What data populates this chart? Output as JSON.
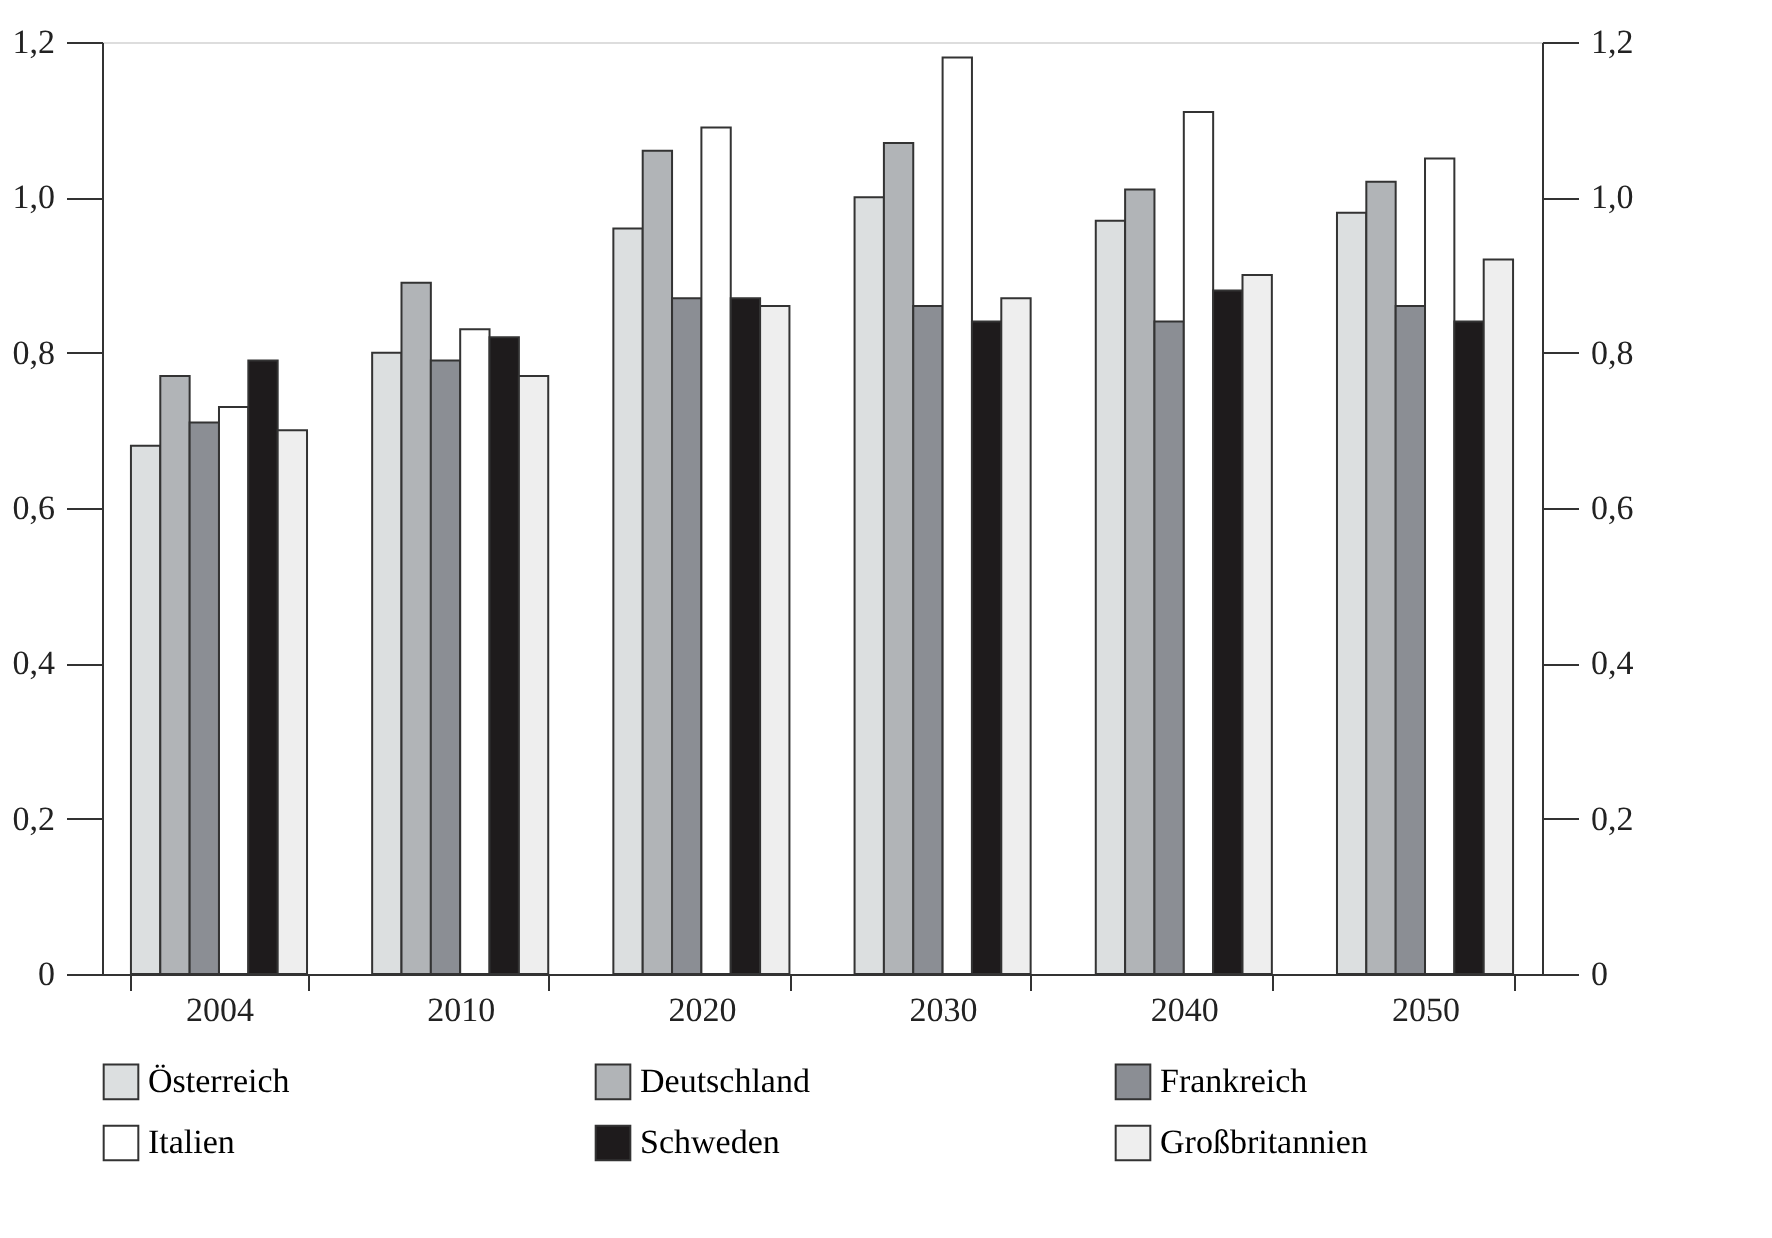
{
  "chart_data": {
    "type": "bar",
    "categories": [
      "2004",
      "2010",
      "2020",
      "2030",
      "2040",
      "2050"
    ],
    "series": [
      {
        "name": "Österreich",
        "color": "#dcdfe0",
        "values": [
          0.68,
          0.8,
          0.96,
          1.0,
          0.97,
          0.98
        ]
      },
      {
        "name": "Deutschland",
        "color": "#b1b4b7",
        "values": [
          0.77,
          0.89,
          1.06,
          1.07,
          1.01,
          1.02
        ]
      },
      {
        "name": "Frankreich",
        "color": "#8b8e94",
        "values": [
          0.71,
          0.79,
          0.87,
          0.86,
          0.84,
          0.86
        ]
      },
      {
        "name": "Italien",
        "color": "#ffffff",
        "values": [
          0.73,
          0.83,
          1.09,
          1.18,
          1.11,
          1.05
        ]
      },
      {
        "name": "Schweden",
        "color": "#1e1b1c",
        "values": [
          0.79,
          0.82,
          0.87,
          0.84,
          0.88,
          0.84
        ]
      },
      {
        "name": "Großbritannien",
        "color": "#eeeeee",
        "values": [
          0.7,
          0.77,
          0.86,
          0.87,
          0.9,
          0.92
        ]
      }
    ],
    "ylim": [
      0,
      1.2
    ],
    "yticks": [
      0,
      {
        "value": 0.2,
        "label": "0,2"
      },
      {
        "value": 0.4,
        "label": "0,4"
      },
      {
        "value": 0.6,
        "label": "0,6"
      },
      {
        "value": 0.8,
        "label": "0,8"
      },
      {
        "value": 1.0,
        "label": "1,0"
      },
      {
        "value": 1.2,
        "label": "1,2"
      }
    ],
    "y2lim": [
      0,
      1.2
    ],
    "y2ticks": [
      0,
      {
        "value": 0.2,
        "label": "0,2"
      },
      {
        "value": 0.4,
        "label": "0,4"
      },
      {
        "value": 0.6,
        "label": "0,6"
      },
      {
        "value": 0.8,
        "label": "0,8"
      },
      {
        "value": 1.0,
        "label": "1,0"
      },
      {
        "value": 1.2,
        "label": "1,2"
      }
    ],
    "grid": false,
    "legend": "bottom"
  }
}
